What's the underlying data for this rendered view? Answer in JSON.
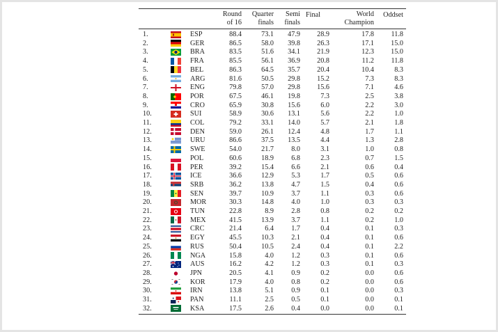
{
  "headers": [
    {
      "l1": "",
      "l2": ""
    },
    {
      "l1": "",
      "l2": ""
    },
    {
      "l1": "",
      "l2": ""
    },
    {
      "l1": "Round",
      "l2": "of 16"
    },
    {
      "l1": "Quarter",
      "l2": "finals"
    },
    {
      "l1": "Semi",
      "l2": "finals"
    },
    {
      "l1": "Final",
      "l2": ""
    },
    {
      "l1": "World",
      "l2": "Champion"
    },
    {
      "l1": "Oddset",
      "l2": ""
    }
  ],
  "rows": [
    {
      "rank": "1.",
      "team": "ESP",
      "flag": "flag-spain",
      "r16": "88.4",
      "qf": "73.1",
      "sf": "47.9",
      "fin": "28.9",
      "wc": "17.8",
      "odds": "11.8"
    },
    {
      "rank": "2.",
      "team": "GER",
      "flag": "flag-germany",
      "r16": "86.5",
      "qf": "58.0",
      "sf": "39.8",
      "fin": "26.3",
      "wc": "17.1",
      "odds": "15.0"
    },
    {
      "rank": "3.",
      "team": "BRA",
      "flag": "flag-brazil",
      "r16": "83.5",
      "qf": "51.6",
      "sf": "34.1",
      "fin": "21.9",
      "wc": "12.3",
      "odds": "15.0"
    },
    {
      "rank": "4.",
      "team": "FRA",
      "flag": "flag-france",
      "r16": "85.5",
      "qf": "56.1",
      "sf": "36.9",
      "fin": "20.8",
      "wc": "11.2",
      "odds": "11.8"
    },
    {
      "rank": "5.",
      "team": "BEL",
      "flag": "flag-belgium",
      "r16": "86.3",
      "qf": "64.5",
      "sf": "35.7",
      "fin": "20.4",
      "wc": "10.4",
      "odds": "8.3"
    },
    {
      "rank": "6.",
      "team": "ARG",
      "flag": "flag-argentina",
      "r16": "81.6",
      "qf": "50.5",
      "sf": "29.8",
      "fin": "15.2",
      "wc": "7.3",
      "odds": "8.3"
    },
    {
      "rank": "7.",
      "team": "ENG",
      "flag": "flag-england",
      "r16": "79.8",
      "qf": "57.0",
      "sf": "29.8",
      "fin": "15.6",
      "wc": "7.1",
      "odds": "4.6"
    },
    {
      "rank": "8.",
      "team": "POR",
      "flag": "flag-portugal",
      "r16": "67.5",
      "qf": "46.1",
      "sf": "19.8",
      "fin": "7.3",
      "wc": "2.5",
      "odds": "3.8"
    },
    {
      "rank": "9.",
      "team": "CRO",
      "flag": "flag-croatia",
      "r16": "65.9",
      "qf": "30.8",
      "sf": "15.6",
      "fin": "6.0",
      "wc": "2.2",
      "odds": "3.0"
    },
    {
      "rank": "10.",
      "team": "SUI",
      "flag": "flag-switzerland",
      "r16": "58.9",
      "qf": "30.6",
      "sf": "13.1",
      "fin": "5.6",
      "wc": "2.2",
      "odds": "1.0"
    },
    {
      "rank": "11.",
      "team": "COL",
      "flag": "flag-colombia",
      "r16": "79.2",
      "qf": "33.1",
      "sf": "14.0",
      "fin": "5.7",
      "wc": "2.1",
      "odds": "1.8"
    },
    {
      "rank": "12.",
      "team": "DEN",
      "flag": "flag-denmark",
      "r16": "59.0",
      "qf": "26.1",
      "sf": "12.4",
      "fin": "4.8",
      "wc": "1.7",
      "odds": "1.1"
    },
    {
      "rank": "13.",
      "team": "URU",
      "flag": "flag-uruguay",
      "r16": "86.6",
      "qf": "37.5",
      "sf": "13.5",
      "fin": "4.4",
      "wc": "1.3",
      "odds": "2.8"
    },
    {
      "rank": "14.",
      "team": "SWE",
      "flag": "flag-sweden",
      "r16": "54.0",
      "qf": "21.7",
      "sf": "8.0",
      "fin": "3.1",
      "wc": "1.0",
      "odds": "0.8"
    },
    {
      "rank": "15.",
      "team": "POL",
      "flag": "flag-poland",
      "r16": "60.6",
      "qf": "18.9",
      "sf": "6.8",
      "fin": "2.3",
      "wc": "0.7",
      "odds": "1.5"
    },
    {
      "rank": "16.",
      "team": "PER",
      "flag": "flag-peru",
      "r16": "39.2",
      "qf": "15.4",
      "sf": "6.6",
      "fin": "2.1",
      "wc": "0.6",
      "odds": "0.4"
    },
    {
      "rank": "17.",
      "team": "ICE",
      "flag": "flag-iceland",
      "r16": "36.6",
      "qf": "12.9",
      "sf": "5.3",
      "fin": "1.7",
      "wc": "0.5",
      "odds": "0.6"
    },
    {
      "rank": "18.",
      "team": "SRB",
      "flag": "flag-serbia",
      "r16": "36.2",
      "qf": "13.8",
      "sf": "4.7",
      "fin": "1.5",
      "wc": "0.4",
      "odds": "0.6"
    },
    {
      "rank": "19.",
      "team": "SEN",
      "flag": "flag-senegal",
      "r16": "39.7",
      "qf": "10.9",
      "sf": "3.7",
      "fin": "1.1",
      "wc": "0.3",
      "odds": "0.6"
    },
    {
      "rank": "20.",
      "team": "MOR",
      "flag": "flag-morocco",
      "r16": "30.3",
      "qf": "14.8",
      "sf": "4.0",
      "fin": "1.0",
      "wc": "0.3",
      "odds": "0.3"
    },
    {
      "rank": "21.",
      "team": "TUN",
      "flag": "flag-tunisia",
      "r16": "22.8",
      "qf": "8.9",
      "sf": "2.8",
      "fin": "0.8",
      "wc": "0.2",
      "odds": "0.2"
    },
    {
      "rank": "22.",
      "team": "MEX",
      "flag": "flag-mexico",
      "r16": "41.5",
      "qf": "13.9",
      "sf": "3.7",
      "fin": "1.1",
      "wc": "0.2",
      "odds": "1.0"
    },
    {
      "rank": "23.",
      "team": "CRC",
      "flag": "flag-costa-rica",
      "r16": "21.4",
      "qf": "6.4",
      "sf": "1.7",
      "fin": "0.4",
      "wc": "0.1",
      "odds": "0.3"
    },
    {
      "rank": "24.",
      "team": "EGY",
      "flag": "flag-egypt",
      "r16": "45.5",
      "qf": "10.3",
      "sf": "2.1",
      "fin": "0.4",
      "wc": "0.1",
      "odds": "0.6"
    },
    {
      "rank": "25.",
      "team": "RUS",
      "flag": "flag-russia",
      "r16": "50.4",
      "qf": "10.5",
      "sf": "2.4",
      "fin": "0.4",
      "wc": "0.1",
      "odds": "2.2"
    },
    {
      "rank": "26.",
      "team": "NGA",
      "flag": "flag-nigeria",
      "r16": "15.8",
      "qf": "4.0",
      "sf": "1.2",
      "fin": "0.3",
      "wc": "0.1",
      "odds": "0.6"
    },
    {
      "rank": "27.",
      "team": "AUS",
      "flag": "flag-australia",
      "r16": "16.2",
      "qf": "4.2",
      "sf": "1.2",
      "fin": "0.3",
      "wc": "0.1",
      "odds": "0.3"
    },
    {
      "rank": "28.",
      "team": "JPN",
      "flag": "flag-japan",
      "r16": "20.5",
      "qf": "4.1",
      "sf": "0.9",
      "fin": "0.2",
      "wc": "0.0",
      "odds": "0.6"
    },
    {
      "rank": "29.",
      "team": "KOR",
      "flag": "flag-korea",
      "r16": "17.9",
      "qf": "4.0",
      "sf": "0.8",
      "fin": "0.2",
      "wc": "0.0",
      "odds": "0.6"
    },
    {
      "rank": "30.",
      "team": "IRN",
      "flag": "flag-iran",
      "r16": "13.8",
      "qf": "5.1",
      "sf": "0.9",
      "fin": "0.1",
      "wc": "0.0",
      "odds": "0.3"
    },
    {
      "rank": "31.",
      "team": "PAN",
      "flag": "flag-panama",
      "r16": "11.1",
      "qf": "2.5",
      "sf": "0.5",
      "fin": "0.1",
      "wc": "0.0",
      "odds": "0.1"
    },
    {
      "rank": "32.",
      "team": "KSA",
      "flag": "flag-saudi-arabia",
      "r16": "17.5",
      "qf": "2.6",
      "sf": "0.4",
      "fin": "0.0",
      "wc": "0.0",
      "odds": "0.1"
    }
  ]
}
